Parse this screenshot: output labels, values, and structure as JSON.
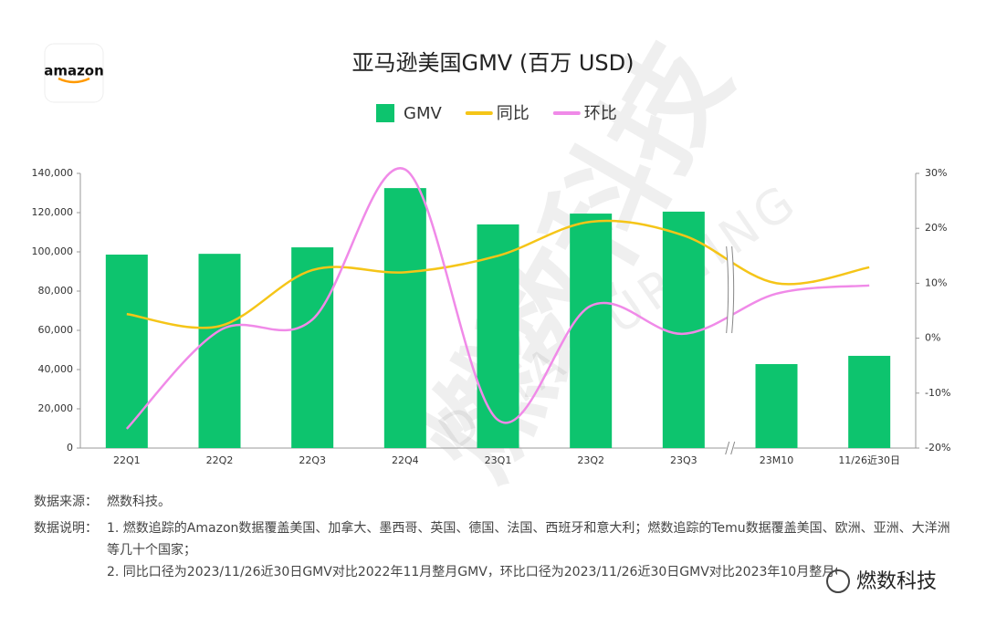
{
  "chart_data": {
    "type": "combo",
    "title": "亚马逊美国GMV (百万 USD)",
    "logo": "amazon",
    "watermark": "燃数科技",
    "watermark_sub": "DATA BURNING",
    "brand": "燃数科技",
    "source_label": "数据来源：",
    "source": "燃数科技。",
    "notes_label": "数据说明：",
    "notes": [
      "1. 燃数追踪的Amazon数据覆盖美国、加拿大、墨西哥、英国、德国、法国、西班牙和意大利；燃数追踪的Temu数据覆盖美国、欧洲、亚洲、大洋洲等几十个国家；",
      "2. 同比口径为2023/11/26近30日GMV对比2022年11月整月GMV，环比口径为2023/11/26近30日GMV对比2023年10月整月GMV。"
    ],
    "categories": [
      "22Q1",
      "22Q2",
      "22Q3",
      "22Q4",
      "23Q1",
      "23Q2",
      "23Q3",
      "23M10",
      "11/26近30日"
    ],
    "series": [
      {
        "name": "GMV",
        "type": "bar",
        "color": "#0dc46e",
        "values": [
          98600,
          99000,
          102300,
          132500,
          114000,
          119500,
          120500,
          42800,
          47000
        ]
      },
      {
        "name": "同比",
        "type": "line",
        "axis": "y2",
        "color": "#f5c518",
        "values": [
          4.4,
          2.2,
          12.4,
          12,
          15,
          21.2,
          18.7,
          10,
          12.9
        ]
      },
      {
        "name": "环比",
        "type": "line",
        "axis": "y2",
        "color": "#f08ae8",
        "values": [
          -16.5,
          1.4,
          3.4,
          30.7,
          -14.9,
          5.9,
          0.8,
          8.1,
          9.6
        ]
      }
    ],
    "ylim": [
      0,
      140000
    ],
    "yticks": [
      0,
      {
        "value": 20000,
        "label": "20,000"
      },
      {
        "value": 40000,
        "label": "40,000"
      },
      {
        "value": 60000,
        "label": "60,000"
      },
      {
        "value": 80000,
        "label": "80,000"
      },
      {
        "value": 100000,
        "label": "100,000"
      },
      {
        "value": 120000,
        "label": "120,000"
      },
      {
        "value": 140000,
        "label": "140,000"
      }
    ],
    "y2lim": [
      -20,
      30
    ],
    "y2ticks": [
      {
        "value": -20,
        "label": "-20%"
      },
      {
        "value": -10,
        "label": "-10%"
      },
      {
        "value": 0,
        "label": "0%"
      },
      {
        "value": 10,
        "label": "10%"
      },
      {
        "value": 20,
        "label": "20%"
      },
      {
        "value": 30,
        "label": "30%"
      }
    ],
    "legend": "top"
  }
}
